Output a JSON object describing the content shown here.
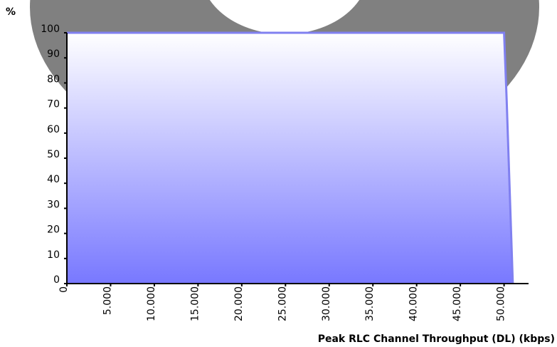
{
  "chart_data": {
    "type": "area",
    "y_label": "%",
    "x_label": "Peak RLC Channel Throughput (DL) (kbps)",
    "x": [
      0,
      50000,
      50300,
      51000
    ],
    "values": [
      100,
      100,
      73,
      0
    ],
    "color": "#8080f0",
    "xlim": [
      0,
      52800
    ],
    "ylim": [
      0,
      100
    ],
    "xticks": [
      0,
      {
        "value": 5000,
        "label": "5.000"
      },
      {
        "value": 10000,
        "label": "10.000"
      },
      {
        "value": 15000,
        "label": "15.000"
      },
      {
        "value": 20000,
        "label": "20.000"
      },
      {
        "value": 25000,
        "label": "25.000"
      },
      {
        "value": 30000,
        "label": "30.000"
      },
      {
        "value": 35000,
        "label": "35.000"
      },
      {
        "value": 40000,
        "label": "40.000"
      },
      {
        "value": 45000,
        "label": "45.000"
      },
      {
        "value": 50000,
        "label": "50.000"
      }
    ],
    "yticks": [
      0,
      10,
      20,
      30,
      40,
      50,
      60,
      70,
      80,
      90,
      100
    ]
  }
}
